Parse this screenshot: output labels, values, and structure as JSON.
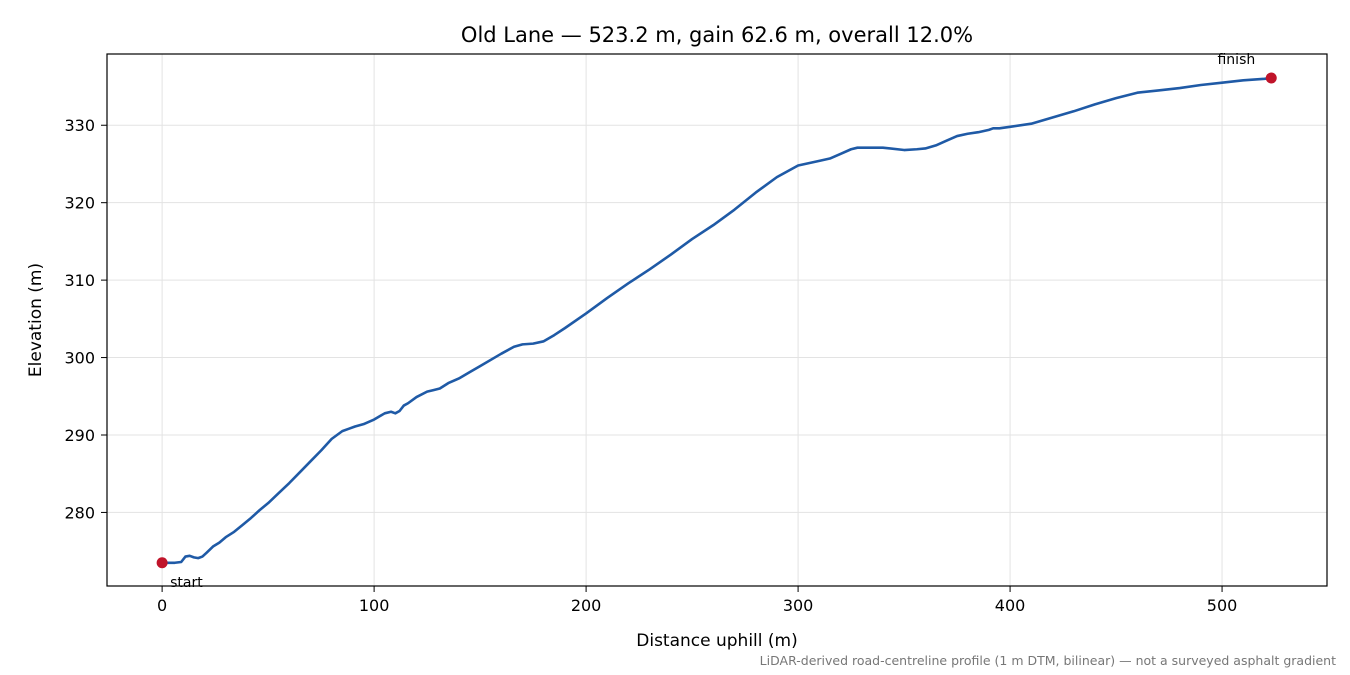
{
  "chart_data": {
    "type": "line",
    "title": "Old Lane — 523.2 m, gain 62.6 m, overall 12.0%",
    "xlabel": "Distance uphill (m)",
    "ylabel": "Elevation (m)",
    "xlim": [
      -26,
      549.5
    ],
    "ylim": [
      270.5,
      339.2
    ],
    "xticks": [
      0,
      100,
      200,
      300,
      400,
      500
    ],
    "yticks": [
      280,
      290,
      300,
      310,
      320,
      330
    ],
    "grid": true,
    "footnote": "LiDAR-derived road-centreline profile (1 m DTM, bilinear) — not a surveyed asphalt gradient",
    "series": [
      {
        "color": "#1f5aa6",
        "x": [
          0,
          3,
          6,
          9,
          11,
          13,
          15,
          17,
          19,
          21,
          24,
          27,
          30,
          34,
          38,
          42,
          46,
          50,
          55,
          60,
          65,
          70,
          75,
          80,
          85,
          88,
          91,
          95,
          100,
          105,
          108,
          110,
          112,
          114,
          116,
          120,
          125,
          128,
          131,
          135,
          140,
          145,
          150,
          160,
          166,
          170,
          175,
          180,
          185,
          190,
          200,
          210,
          220,
          230,
          240,
          250,
          260,
          270,
          280,
          290,
          300,
          310,
          315,
          320,
          325,
          328,
          332,
          340,
          350,
          356,
          360,
          365,
          370,
          375,
          380,
          385,
          390,
          392,
          395,
          400,
          410,
          420,
          430,
          440,
          450,
          460,
          470,
          480,
          490,
          500,
          510,
          520,
          523.2
        ],
        "y": [
          273.5,
          273.5,
          273.5,
          273.6,
          274.3,
          274.4,
          274.2,
          274.1,
          274.3,
          274.8,
          275.6,
          276.1,
          276.8,
          277.5,
          278.4,
          279.3,
          280.3,
          281.2,
          282.5,
          283.8,
          285.2,
          286.6,
          288.0,
          289.5,
          290.5,
          290.8,
          291.1,
          291.4,
          292.0,
          292.8,
          293.0,
          292.8,
          293.1,
          293.8,
          294.1,
          294.9,
          295.6,
          295.8,
          296.0,
          296.7,
          297.3,
          298.1,
          298.9,
          300.5,
          301.4,
          301.7,
          301.8,
          302.1,
          302.9,
          303.8,
          305.7,
          307.7,
          309.6,
          311.4,
          313.3,
          315.3,
          317.1,
          319.1,
          321.3,
          323.3,
          324.8,
          325.4,
          325.7,
          326.3,
          326.9,
          327.1,
          327.1,
          327.1,
          326.8,
          326.9,
          327.0,
          327.4,
          328.0,
          328.6,
          328.9,
          329.1,
          329.4,
          329.6,
          329.6,
          329.8,
          330.2,
          331.0,
          331.8,
          332.7,
          333.5,
          334.2,
          334.5,
          334.8,
          335.2,
          335.5,
          335.8,
          336.0,
          336.1
        ]
      }
    ],
    "markers": [
      {
        "label": "start",
        "x": 0,
        "y": 273.5,
        "color": "#c0142a"
      },
      {
        "label": "finish",
        "x": 523.2,
        "y": 336.1,
        "color": "#c0142a"
      }
    ]
  }
}
